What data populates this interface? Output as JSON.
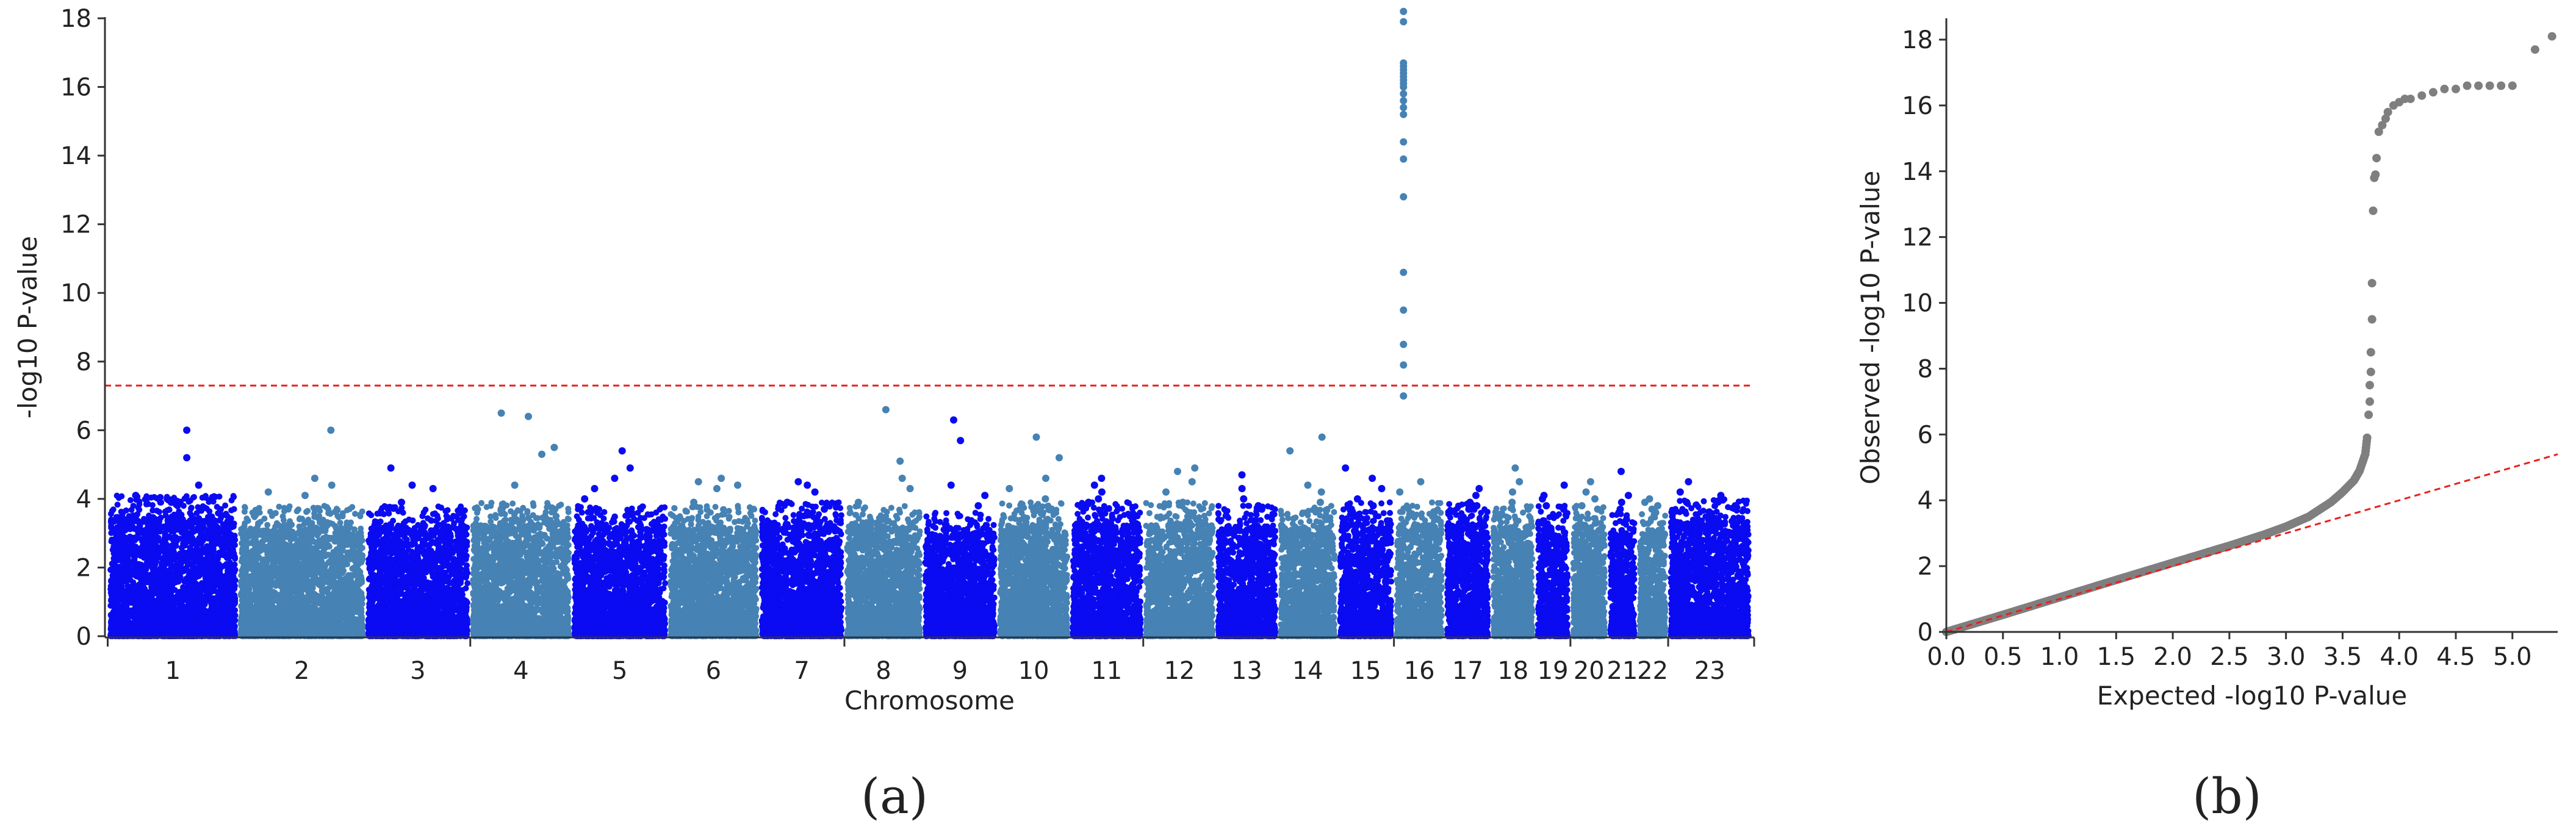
{
  "figure": {
    "panel_a_caption": "(a)",
    "panel_b_caption": "(b)"
  },
  "colors": {
    "odd_chromosome": "#0b0bf2",
    "even_chromosome": "#4682b4",
    "threshold_line": "#e8201c",
    "qq_points": "#7f7f7f",
    "axis": "#333333"
  },
  "chart_data": [
    {
      "id": "manhattan",
      "type": "scatter",
      "title": "",
      "xlabel": "Chromosome",
      "ylabel": "-log10 P-value",
      "ylim": [
        0,
        18
      ],
      "y_ticks": [
        0,
        2,
        4,
        6,
        8,
        10,
        12,
        14,
        16,
        18
      ],
      "genome_wide_threshold": 7.3,
      "chromosomes": [
        {
          "label": "1",
          "length": 249,
          "color_group": "odd",
          "noise_max": 3.5,
          "peaks": [
            5.2,
            6.0,
            4.4,
            4.1,
            3.9
          ]
        },
        {
          "label": "2",
          "length": 243,
          "color_group": "even",
          "noise_max": 3.2,
          "peaks": [
            4.4,
            4.1,
            6.0,
            4.6,
            4.2
          ]
        },
        {
          "label": "3",
          "length": 198,
          "color_group": "odd",
          "noise_max": 3.2,
          "peaks": [
            4.9,
            4.4,
            4.3,
            3.9,
            3.7
          ]
        },
        {
          "label": "4",
          "length": 191,
          "color_group": "even",
          "noise_max": 3.3,
          "peaks": [
            5.5,
            5.3,
            6.4,
            6.5,
            4.4
          ]
        },
        {
          "label": "5",
          "length": 181,
          "color_group": "odd",
          "noise_max": 3.2,
          "peaks": [
            5.4,
            4.9,
            4.6,
            4.3,
            4.0
          ]
        },
        {
          "label": "6",
          "length": 171,
          "color_group": "even",
          "noise_max": 3.2,
          "peaks": [
            4.6,
            4.5,
            4.4,
            4.3,
            3.9
          ]
        },
        {
          "label": "7",
          "length": 159,
          "color_group": "odd",
          "noise_max": 3.3,
          "peaks": [
            4.5,
            4.4,
            4.2,
            3.9,
            3.7
          ]
        },
        {
          "label": "8",
          "length": 145,
          "color_group": "even",
          "noise_max": 3.2,
          "peaks": [
            6.6,
            5.1,
            4.6,
            4.3,
            3.9
          ]
        },
        {
          "label": "9",
          "length": 138,
          "color_group": "odd",
          "noise_max": 3.0,
          "peaks": [
            6.3,
            5.7,
            4.4,
            4.1,
            3.8
          ]
        },
        {
          "label": "10",
          "length": 134,
          "color_group": "even",
          "noise_max": 3.3,
          "peaks": [
            5.8,
            5.2,
            4.6,
            4.3,
            4.0
          ]
        },
        {
          "label": "11",
          "length": 135,
          "color_group": "odd",
          "noise_max": 3.3,
          "peaks": [
            4.6,
            4.4,
            4.2,
            4.0,
            3.9
          ]
        },
        {
          "label": "12",
          "length": 133,
          "color_group": "even",
          "noise_max": 3.3,
          "peaks": [
            4.9,
            4.8,
            4.5,
            4.2,
            3.9
          ]
        },
        {
          "label": "13",
          "length": 114,
          "color_group": "odd",
          "noise_max": 3.2,
          "peaks": [
            4.7,
            4.3,
            4.0,
            3.8,
            3.7
          ]
        },
        {
          "label": "14",
          "length": 107,
          "color_group": "even",
          "noise_max": 3.2,
          "peaks": [
            5.4,
            5.8,
            4.4,
            4.2,
            3.9
          ]
        },
        {
          "label": "15",
          "length": 102,
          "color_group": "odd",
          "noise_max": 3.3,
          "peaks": [
            4.9,
            4.6,
            4.3,
            4.0,
            3.8
          ]
        },
        {
          "label": "16",
          "length": 90,
          "color_group": "even",
          "noise_max": 3.3,
          "peaks": [
            18.2,
            17.9,
            16.7,
            16.6,
            16.5,
            16.4,
            16.3,
            16.2,
            16.1,
            16.0,
            15.8,
            15.6,
            15.4,
            15.2,
            14.4,
            13.9,
            12.8,
            10.6,
            9.5,
            8.5,
            7.9,
            7.0,
            4.5,
            4.2
          ]
        },
        {
          "label": "17",
          "length": 81,
          "color_group": "odd",
          "noise_max": 3.3,
          "peaks": [
            4.3,
            4.1,
            3.9,
            3.8,
            3.7
          ]
        },
        {
          "label": "18",
          "length": 78,
          "color_group": "even",
          "noise_max": 3.2,
          "peaks": [
            4.9,
            4.5,
            4.2,
            3.9,
            3.7
          ]
        },
        {
          "label": "19",
          "length": 59,
          "color_group": "odd",
          "noise_max": 3.2,
          "peaks": [
            4.4,
            4.1,
            4.0,
            3.8,
            3.7
          ]
        },
        {
          "label": "20",
          "length": 63,
          "color_group": "even",
          "noise_max": 3.2,
          "peaks": [
            4.5,
            4.2,
            4.0,
            3.8,
            3.7
          ]
        },
        {
          "label": "21",
          "length": 48,
          "color_group": "odd",
          "noise_max": 3.0,
          "peaks": [
            4.8,
            4.1,
            3.9,
            3.7,
            3.6
          ]
        },
        {
          "label": "22",
          "length": 51,
          "color_group": "even",
          "noise_max": 3.0,
          "peaks": [
            4.0,
            3.9,
            3.8,
            3.7,
            3.6
          ]
        },
        {
          "label": "23",
          "length": 155,
          "color_group": "odd",
          "noise_max": 3.4,
          "peaks": [
            4.5,
            4.2,
            4.1,
            3.9,
            3.8
          ]
        }
      ]
    },
    {
      "id": "qq",
      "type": "scatter",
      "title": "",
      "xlabel": "Expected -log10 P-value",
      "ylabel": "Observed -log10 P-value",
      "xlim": [
        0,
        5.4
      ],
      "ylim": [
        0,
        18.5
      ],
      "x_ticks": [
        "0.0",
        "0.5",
        "1.0",
        "1.5",
        "2.0",
        "2.5",
        "3.0",
        "3.5",
        "4.0",
        "4.5",
        "5.0"
      ],
      "y_ticks": [
        0,
        2,
        4,
        6,
        8,
        10,
        12,
        14,
        16,
        18
      ],
      "reference_line": {
        "x": [
          0,
          5.4
        ],
        "y": [
          0,
          5.4
        ]
      },
      "body_curve": {
        "x": [
          0.0,
          0.5,
          1.0,
          1.5,
          2.0,
          2.5,
          2.8,
          3.0,
          3.2,
          3.4,
          3.5,
          3.6,
          3.65,
          3.7,
          3.72
        ],
        "y": [
          0.0,
          0.52,
          1.05,
          1.58,
          2.1,
          2.62,
          2.95,
          3.2,
          3.5,
          3.95,
          4.25,
          4.6,
          4.9,
          5.4,
          6.0
        ]
      },
      "tail_points": {
        "x": [
          3.73,
          3.74,
          3.74,
          3.75,
          3.75,
          3.76,
          3.76,
          3.77,
          3.78,
          3.79,
          3.8,
          3.82,
          3.85,
          3.88,
          3.9,
          3.95,
          4.0,
          4.05,
          4.1,
          4.2,
          4.3,
          4.4,
          4.5,
          4.6,
          4.7,
          4.8,
          4.9,
          5.0,
          5.2,
          5.35
        ],
        "y": [
          6.6,
          7.0,
          7.5,
          7.9,
          8.5,
          9.5,
          10.6,
          12.8,
          13.8,
          13.9,
          14.4,
          15.2,
          15.4,
          15.6,
          15.8,
          16.0,
          16.1,
          16.2,
          16.2,
          16.3,
          16.4,
          16.5,
          16.5,
          16.6,
          16.6,
          16.6,
          16.6,
          16.6,
          17.7,
          18.1
        ]
      }
    }
  ]
}
